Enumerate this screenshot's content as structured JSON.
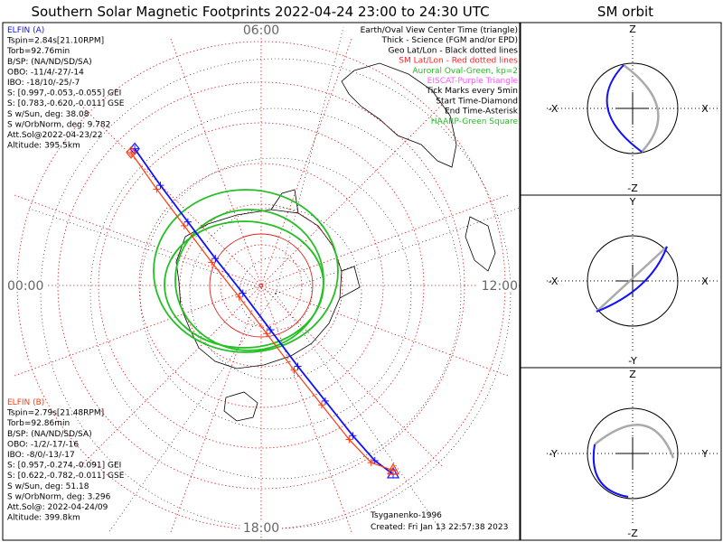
{
  "header": {
    "main_title": "Southern Solar Magnetic Footprints 2022-04-24 23:00 to 24:30 UTC",
    "side_title": "SM orbit"
  },
  "colors": {
    "elfin_a": "#1010ff",
    "elfin_b": "#ff3a10",
    "oval": "#22c022",
    "sm_grid": "#dd2222",
    "geo_grid": "#000000",
    "eiscat": "#ff55ff"
  },
  "polar_labels": {
    "top": "06:00",
    "left": "00:00",
    "right": "12:00",
    "bottom": "18:00"
  },
  "legend_lines": [
    {
      "text": "Earth/Oval View Center Time (triangle)",
      "color": "#000000"
    },
    {
      "text": "Thick - Science (FGM and/or EPD)",
      "color": "#000000"
    },
    {
      "text": "Geo Lat/Lon - Black dotted lines",
      "color": "#000000"
    },
    {
      "text": "SM Lat/Lon - Red dotted lines",
      "color": "#ff2020"
    },
    {
      "text": "Auroral Oval-Green, kp=2",
      "color": "#22c022"
    },
    {
      "text": "EISCAT-Purple Triangle",
      "color": "#ff55ff"
    },
    {
      "text": "Tick Marks every 5min",
      "color": "#000000"
    },
    {
      "text": "Start Time-Diamond",
      "color": "#000000"
    },
    {
      "text": "End Time-Asterisk",
      "color": "#000000"
    },
    {
      "text": "HAARP-Green Square",
      "color": "#22c022"
    }
  ],
  "elfin_a_info": [
    "ELFIN (A)",
    "Tspin=2.84s[21.10RPM]",
    "Torb=92.76min",
    "B/SP: (NA/ND/SD/SA)",
    "OBO: -11/4/-27/-14",
    "IBO: -18/10/-25/-7",
    "S: [0.997,-0.053,-0.055] GEI",
    "S: [0.783,-0.620,-0.011] GSE",
    "S w/Sun, deg: 38.08",
    "S w/OrbNorm, deg: 9.782",
    "Att.Sol@2022-04-23/22",
    "Altitude: 395.5km"
  ],
  "elfin_b_info": [
    "ELFIN (B)",
    "Tspin=2.79s[21.48RPM]",
    "Torb=92.86min",
    "B/SP: (NA/ND/SD/SA)",
    "OBO: -1/2/-17/-16",
    "IBO: -8/0/-13/-17",
    "S: [0.957,-0.274,-0.091] GEI",
    "S: [0.622,-0.782,-0.011] GSE",
    "S w/Sun, deg: 51.18",
    "S w/OrbNorm, deg: 3.296",
    "Att.Sol@: 2022-04-24/09",
    "Altitude: 399.8km"
  ],
  "footer": {
    "credit": "Tsyganenko-1996",
    "created": "Created: Fri Jan 13 22:57:38 2023"
  },
  "orbit_panels": [
    {
      "top": "Z",
      "bottom": "-Z",
      "left": "-X",
      "right": "X"
    },
    {
      "top": "Y",
      "bottom": "-Y",
      "left": "-X",
      "right": "X"
    },
    {
      "top": "Z",
      "bottom": "-Z",
      "left": "-Y",
      "right": "Y"
    }
  ],
  "chart_data": {
    "type": "scatter",
    "title": "Southern Solar Magnetic Footprints 2022-04-24 23:00 to 24:30 UTC",
    "description_axes": "polar map in SM coordinates, magnetic local time around rim",
    "mlt_labels": [
      "06:00",
      "12:00",
      "18:00",
      "00:00"
    ],
    "series": [
      {
        "name": "ELFIN (A)",
        "points_xy": [
          [
            -0.69,
            -0.71
          ],
          [
            -0.55,
            -0.52
          ],
          [
            -0.4,
            -0.33
          ],
          [
            -0.25,
            -0.14
          ],
          [
            -0.1,
            0.04
          ],
          [
            0.05,
            0.23
          ],
          [
            0.2,
            0.42
          ],
          [
            0.35,
            0.6
          ],
          [
            0.5,
            0.78
          ],
          [
            0.62,
            0.91
          ],
          [
            0.72,
            0.98
          ]
        ]
      },
      {
        "name": "ELFIN (B)",
        "points_xy": [
          [
            -0.71,
            -0.69
          ],
          [
            -0.57,
            -0.5
          ],
          [
            -0.42,
            -0.31
          ],
          [
            -0.27,
            -0.12
          ],
          [
            -0.12,
            0.06
          ],
          [
            0.03,
            0.25
          ],
          [
            0.18,
            0.44
          ],
          [
            0.33,
            0.62
          ],
          [
            0.48,
            0.8
          ],
          [
            0.6,
            0.92
          ],
          [
            0.72,
            0.96
          ]
        ]
      }
    ]
  }
}
